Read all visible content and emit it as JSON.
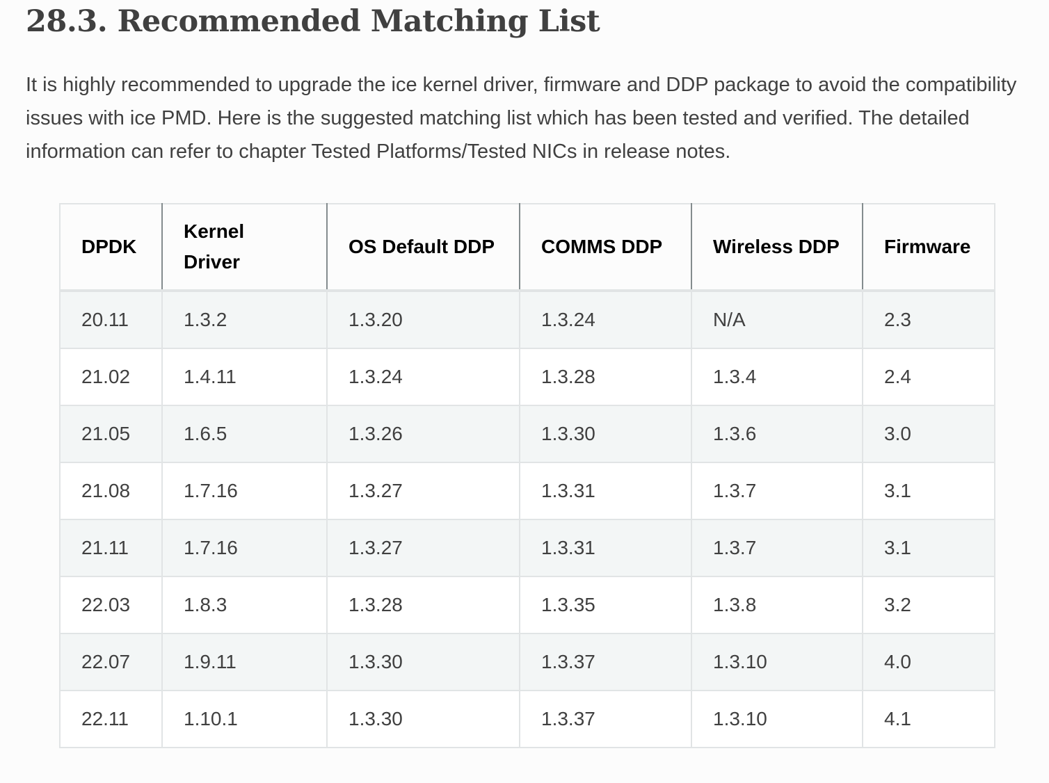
{
  "heading": "28.3. Recommended Matching List",
  "intro": "It is highly recommended to upgrade the ice kernel driver, firmware and DDP package to avoid the compatibility issues with ice PMD. Here is the suggested matching list which has been tested and verified. The detailed information can refer to chapter Tested Platforms/Tested NICs in release notes.",
  "table": {
    "columns": [
      "DPDK",
      "Kernel Driver",
      "OS Default DDP",
      "COMMS DDP",
      "Wireless DDP",
      "Firmware"
    ],
    "rows": [
      [
        "20.11",
        "1.3.2",
        "1.3.20",
        "1.3.24",
        "N/A",
        "2.3"
      ],
      [
        "21.02",
        "1.4.11",
        "1.3.24",
        "1.3.28",
        "1.3.4",
        "2.4"
      ],
      [
        "21.05",
        "1.6.5",
        "1.3.26",
        "1.3.30",
        "1.3.6",
        "3.0"
      ],
      [
        "21.08",
        "1.7.16",
        "1.3.27",
        "1.3.31",
        "1.3.7",
        "3.1"
      ],
      [
        "21.11",
        "1.7.16",
        "1.3.27",
        "1.3.31",
        "1.3.7",
        "3.1"
      ],
      [
        "22.03",
        "1.8.3",
        "1.3.28",
        "1.3.35",
        "1.3.8",
        "3.2"
      ],
      [
        "22.07",
        "1.9.11",
        "1.3.30",
        "1.3.37",
        "1.3.10",
        "4.0"
      ],
      [
        "22.11",
        "1.10.1",
        "1.3.30",
        "1.3.37",
        "1.3.10",
        "4.1"
      ]
    ]
  },
  "colors": {
    "page_background": "#fcfcfc",
    "heading_text": "#404040",
    "body_text": "#404040",
    "table_header_text": "#000000",
    "table_cell_text": "#404040",
    "table_border": "#e1e4e5",
    "table_header_divider": "#848c8e",
    "row_stripe": "#f3f6f6",
    "row_plain": "#ffffff"
  }
}
